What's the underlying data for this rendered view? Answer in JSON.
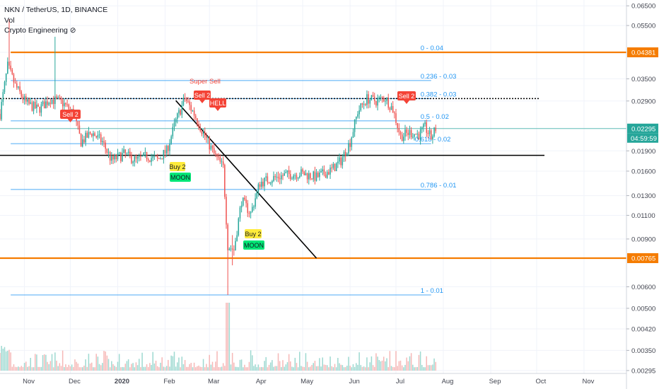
{
  "legend": {
    "symbol": "NKN / TetherUS, 1D, BINANCE",
    "vol": "Vol",
    "indicator": "Crypto Engineering ⊘"
  },
  "price_axis": {
    "ticks": [
      "0.06500",
      "0.05500",
      "0.04381",
      "0.03500",
      "0.02900",
      "0.02295",
      "0.01900",
      "0.01600",
      "0.01300",
      "0.01100",
      "0.00900",
      "0.00765",
      "0.00600",
      "0.00500",
      "0.00420",
      "0.00350",
      "0.00295"
    ],
    "current_price": "0.02295",
    "countdown": "04:59:59",
    "resistance_label": "0.04381",
    "support_label": "0.00765"
  },
  "time_axis": [
    "Nov",
    "Dec",
    "2020",
    "Feb",
    "Mar",
    "Apr",
    "May",
    "Jun",
    "Jul",
    "Aug",
    "Sep",
    "Oct",
    "Nov"
  ],
  "fib_labels": [
    "0 - 0.04",
    "0.236 - 0.03",
    "0.382 - 0.03",
    "0.5 - 0.02",
    "0.618 - 0.02",
    "0.786 - 0.01",
    "1 - 0.01"
  ],
  "signals": {
    "sell_1": "Sell 2",
    "super_sell": "Super Sell",
    "sell_2": "Sell 2",
    "hell": "HELL",
    "sell_3": "Sell 2",
    "buy_1": "Buy 2",
    "moon_1": "MOON",
    "buy_2": "Buy 2",
    "moon_2": "MOON"
  },
  "colors": {
    "up": "#26a69a",
    "down": "#ef5350",
    "fib": "#2196f3",
    "key_level": "#f57c00",
    "price_line": "#26a69a",
    "sell": "#f44336",
    "buy": "#ffeb3b",
    "moon": "#00e676"
  },
  "chart_data": {
    "type": "candlestick",
    "symbol": "NKN / TetherUS",
    "interval": "1D",
    "exchange": "BINANCE",
    "x_range": [
      "2019-10-16",
      "2020-11-26"
    ],
    "y_scale": "log",
    "last_price": 0.02295,
    "key_levels": [
      0.04381,
      0.00765
    ],
    "horizontal_line": 0.0183,
    "dotted_line": 0.0296,
    "trend_line": {
      "from": [
        "2020-02-08",
        0.0291
      ],
      "to": [
        "2020-05-10",
        0.00765
      ]
    },
    "fib_levels": [
      {
        "label": "0 - 0.04",
        "price": 0.04381
      },
      {
        "label": "0.236 - 0.03",
        "price": 0.0345
      },
      {
        "label": "0.382 - 0.03",
        "price": 0.0296
      },
      {
        "label": "0.5 - 0.02",
        "price": 0.0245
      },
      {
        "label": "0.618 - 0.02",
        "price": 0.0202
      },
      {
        "label": "0.786 - 0.01",
        "price": 0.0137
      },
      {
        "label": "1 - 0.01",
        "price": 0.0056
      }
    ],
    "price_path": [
      [
        "2019-10-16",
        0.026
      ],
      [
        "2019-10-21",
        0.039
      ],
      [
        "2019-10-26",
        0.033
      ],
      [
        "2019-11-02",
        0.0285
      ],
      [
        "2019-11-10",
        0.027
      ],
      [
        "2019-11-18",
        0.0295
      ],
      [
        "2019-11-26",
        0.0285
      ],
      [
        "2019-12-03",
        0.0262
      ],
      [
        "2019-12-08",
        0.0205
      ],
      [
        "2019-12-15",
        0.0222
      ],
      [
        "2019-12-22",
        0.0205
      ],
      [
        "2019-12-28",
        0.0175
      ],
      [
        "2020-01-05",
        0.0185
      ],
      [
        "2020-01-13",
        0.0175
      ],
      [
        "2020-01-20",
        0.0182
      ],
      [
        "2020-01-27",
        0.0176
      ],
      [
        "2020-02-02",
        0.019
      ],
      [
        "2020-02-08",
        0.0245
      ],
      [
        "2020-02-14",
        0.0296
      ],
      [
        "2020-02-20",
        0.026
      ],
      [
        "2020-02-27",
        0.0215
      ],
      [
        "2020-03-04",
        0.0185
      ],
      [
        "2020-03-10",
        0.0165
      ],
      [
        "2020-03-13",
        0.0085
      ],
      [
        "2020-03-17",
        0.0082
      ],
      [
        "2020-03-22",
        0.0125
      ],
      [
        "2020-03-28",
        0.0112
      ],
      [
        "2020-04-03",
        0.0145
      ],
      [
        "2020-04-10",
        0.015
      ],
      [
        "2020-04-20",
        0.0155
      ],
      [
        "2020-04-30",
        0.0157
      ],
      [
        "2020-05-10",
        0.0152
      ],
      [
        "2020-05-20",
        0.0162
      ],
      [
        "2020-05-26",
        0.0175
      ],
      [
        "2020-06-01",
        0.0205
      ],
      [
        "2020-06-06",
        0.0265
      ],
      [
        "2020-06-12",
        0.0296
      ],
      [
        "2020-06-18",
        0.029
      ],
      [
        "2020-06-24",
        0.0298
      ],
      [
        "2020-06-29",
        0.027
      ],
      [
        "2020-07-04",
        0.0215
      ],
      [
        "2020-07-10",
        0.0222
      ],
      [
        "2020-07-16",
        0.0218
      ],
      [
        "2020-07-20",
        0.0232
      ],
      [
        "2020-07-24",
        0.0212
      ],
      [
        "2020-07-27",
        0.02295
      ]
    ]
  }
}
